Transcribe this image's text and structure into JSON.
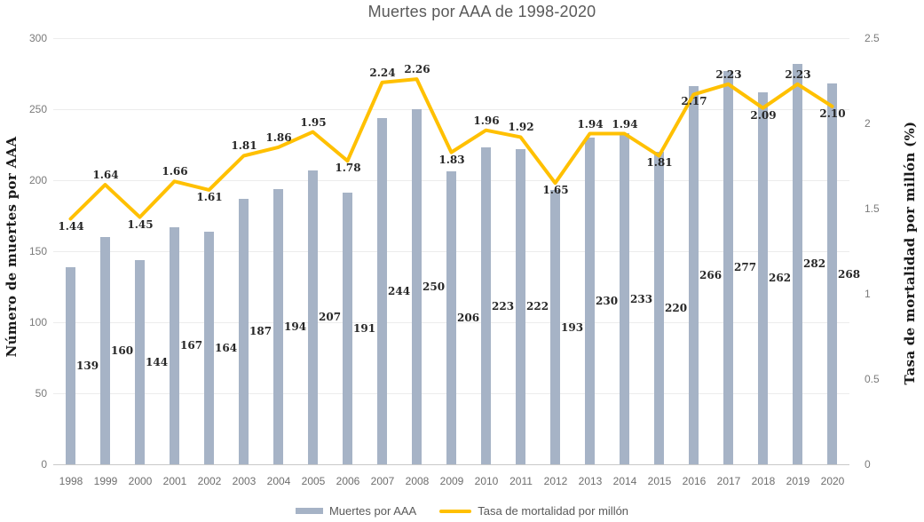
{
  "title": "Muertes por AAA de 1998-2020",
  "left_axis": {
    "title": "Número de muertes por AAA",
    "ticks": [
      "300",
      "250",
      "200",
      "150",
      "100",
      "50",
      "0"
    ]
  },
  "right_axis": {
    "title": "Tasa de mortalidad por millón (%)",
    "ticks": [
      "2.5",
      "2",
      "1.5",
      "1",
      "0.5",
      "0"
    ]
  },
  "legend": {
    "items": [
      {
        "label": "Muertes por AAA",
        "type": "bar"
      },
      {
        "label": "Tasa de mortalidad por millón",
        "type": "line"
      }
    ]
  },
  "colors": {
    "bar": "#a6b3c6",
    "line": "#ffc000",
    "title": "#595959",
    "data_label": "#262626",
    "gridline": "#ececec"
  },
  "chart_data": {
    "type": "bar+line",
    "title": "Muertes por AAA de 1998-2020",
    "categories": [
      "1998",
      "1999",
      "2000",
      "2001",
      "2002",
      "2003",
      "2004",
      "2005",
      "2006",
      "2007",
      "2008",
      "2009",
      "2010",
      "2011",
      "2012",
      "2013",
      "2014",
      "2015",
      "2016",
      "2017",
      "2018",
      "2019",
      "2020"
    ],
    "series": [
      {
        "name": "Muertes por AAA",
        "type": "bar",
        "axis": "left",
        "values": [
          139,
          160,
          144,
          167,
          164,
          187,
          194,
          207,
          191,
          244,
          250,
          206,
          223,
          222,
          193,
          230,
          233,
          220,
          266,
          277,
          262,
          282,
          268
        ]
      },
      {
        "name": "Tasa de mortalidad por millón",
        "type": "line",
        "axis": "right",
        "values": [
          1.44,
          1.64,
          1.45,
          1.66,
          1.61,
          1.81,
          1.86,
          1.95,
          1.78,
          2.24,
          2.26,
          1.83,
          1.96,
          1.92,
          1.65,
          1.94,
          1.94,
          1.81,
          2.17,
          2.23,
          2.09,
          2.23,
          2.1
        ],
        "labels": [
          "1.44",
          "1.64",
          "1.45",
          "1.66",
          "1.61",
          "1.81",
          "1.86",
          "1.95",
          "1.78",
          "2.24",
          "2.26",
          "1.83",
          "1.96",
          "1.92",
          "1.65",
          "1.94",
          "1.94",
          "1.81",
          "2.17",
          "2.23",
          "2.09",
          "2.23",
          "2.10"
        ],
        "label_position": [
          "below",
          "above",
          "below",
          "above",
          "below",
          "above",
          "above",
          "above",
          "below",
          "above",
          "above",
          "below",
          "above",
          "above",
          "below",
          "above",
          "above",
          "below",
          "below",
          "above",
          "below",
          "above",
          "below"
        ]
      }
    ],
    "ylabel_left": "Número de muertes por AAA",
    "ylabel_right": "Tasa de mortalidad por millón (%)",
    "left_ylim": [
      0,
      300
    ],
    "right_ylim": [
      0,
      2.5
    ],
    "grid": "horizontal",
    "legend_position": "bottom"
  }
}
